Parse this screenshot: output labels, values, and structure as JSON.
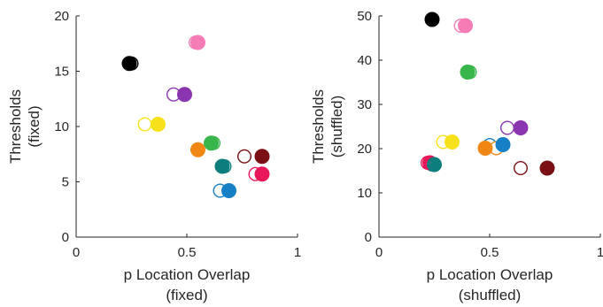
{
  "chart_data": [
    {
      "type": "scatter",
      "title": "",
      "xlabel": [
        "p Location Overlap",
        "(fixed)"
      ],
      "ylabel": [
        "Thresholds",
        "(fixed)"
      ],
      "xlim": [
        0,
        1
      ],
      "ylim": [
        0,
        20
      ],
      "xticks": [
        0,
        0.5,
        1
      ],
      "yticks": [
        0,
        5,
        10,
        15,
        20
      ],
      "xtick_labels": [
        "0",
        "0.5",
        "1"
      ],
      "ytick_labels": [
        "0",
        "5",
        "10",
        "15",
        "20"
      ],
      "grid": false,
      "points": [
        {
          "x": 0.25,
          "y": 15.7,
          "color": "#000000",
          "filled": false
        },
        {
          "x": 0.24,
          "y": 15.7,
          "color": "#000000",
          "filled": true
        },
        {
          "x": 0.54,
          "y": 17.6,
          "color": "#f77cb5",
          "filled": false
        },
        {
          "x": 0.55,
          "y": 17.6,
          "color": "#f77cb5",
          "filled": true
        },
        {
          "x": 0.44,
          "y": 12.9,
          "color": "#8b35b0",
          "filled": false
        },
        {
          "x": 0.49,
          "y": 12.9,
          "color": "#8b35b0",
          "filled": true
        },
        {
          "x": 0.31,
          "y": 10.2,
          "color": "#f6e11a",
          "filled": false
        },
        {
          "x": 0.37,
          "y": 10.2,
          "color": "#f6e11a",
          "filled": true
        },
        {
          "x": 0.62,
          "y": 8.5,
          "color": "#38b54b",
          "filled": false
        },
        {
          "x": 0.61,
          "y": 8.5,
          "color": "#38b54b",
          "filled": true
        },
        {
          "x": 0.55,
          "y": 7.9,
          "color": "#f08614",
          "filled": true
        },
        {
          "x": 0.67,
          "y": 6.4,
          "color": "#0c7e7e",
          "filled": false
        },
        {
          "x": 0.66,
          "y": 6.4,
          "color": "#0c7e7e",
          "filled": true
        },
        {
          "x": 0.76,
          "y": 7.3,
          "color": "#7a0f14",
          "filled": false
        },
        {
          "x": 0.84,
          "y": 7.3,
          "color": "#7a0f14",
          "filled": true
        },
        {
          "x": 0.81,
          "y": 5.7,
          "color": "#e8185a",
          "filled": false
        },
        {
          "x": 0.84,
          "y": 5.7,
          "color": "#e8185a",
          "filled": true
        },
        {
          "x": 0.65,
          "y": 4.2,
          "color": "#1680c6",
          "filled": false
        },
        {
          "x": 0.69,
          "y": 4.2,
          "color": "#1680c6",
          "filled": true
        }
      ]
    },
    {
      "type": "scatter",
      "title": "",
      "xlabel": [
        "p Location Overlap",
        "(shuffled)"
      ],
      "ylabel": [
        "Thresholds",
        "(shuffled)"
      ],
      "xlim": [
        0,
        1
      ],
      "ylim": [
        0,
        50
      ],
      "xticks": [
        0,
        0.5,
        1
      ],
      "yticks": [
        0,
        10,
        20,
        30,
        40,
        50
      ],
      "xtick_labels": [
        "0",
        "0.5",
        "1"
      ],
      "ytick_labels": [
        "0",
        "10",
        "20",
        "30",
        "40",
        "50"
      ],
      "grid": false,
      "points": [
        {
          "x": 0.24,
          "y": 49.2,
          "color": "#000000",
          "filled": false
        },
        {
          "x": 0.24,
          "y": 49.2,
          "color": "#000000",
          "filled": true
        },
        {
          "x": 0.37,
          "y": 47.8,
          "color": "#f77cb5",
          "filled": false
        },
        {
          "x": 0.39,
          "y": 47.8,
          "color": "#f77cb5",
          "filled": true
        },
        {
          "x": 0.41,
          "y": 37.3,
          "color": "#38b54b",
          "filled": false
        },
        {
          "x": 0.4,
          "y": 37.3,
          "color": "#38b54b",
          "filled": true
        },
        {
          "x": 0.58,
          "y": 24.7,
          "color": "#8b35b0",
          "filled": false
        },
        {
          "x": 0.64,
          "y": 24.7,
          "color": "#8b35b0",
          "filled": true
        },
        {
          "x": 0.29,
          "y": 21.5,
          "color": "#f6e11a",
          "filled": false
        },
        {
          "x": 0.33,
          "y": 21.5,
          "color": "#f6e11a",
          "filled": true
        },
        {
          "x": 0.5,
          "y": 20.8,
          "color": "#1680c6",
          "filled": false
        },
        {
          "x": 0.56,
          "y": 20.9,
          "color": "#1680c6",
          "filled": true
        },
        {
          "x": 0.53,
          "y": 20.1,
          "color": "#f08614",
          "filled": false
        },
        {
          "x": 0.48,
          "y": 20.1,
          "color": "#f08614",
          "filled": true
        },
        {
          "x": 0.22,
          "y": 16.8,
          "color": "#e8185a",
          "filled": false
        },
        {
          "x": 0.23,
          "y": 16.8,
          "color": "#e8185a",
          "filled": true
        },
        {
          "x": 0.24,
          "y": 16.4,
          "color": "#0c7e7e",
          "filled": false
        },
        {
          "x": 0.25,
          "y": 16.4,
          "color": "#0c7e7e",
          "filled": true
        },
        {
          "x": 0.64,
          "y": 15.6,
          "color": "#7a0f14",
          "filled": false
        },
        {
          "x": 0.76,
          "y": 15.6,
          "color": "#7a0f14",
          "filled": true
        }
      ]
    }
  ]
}
